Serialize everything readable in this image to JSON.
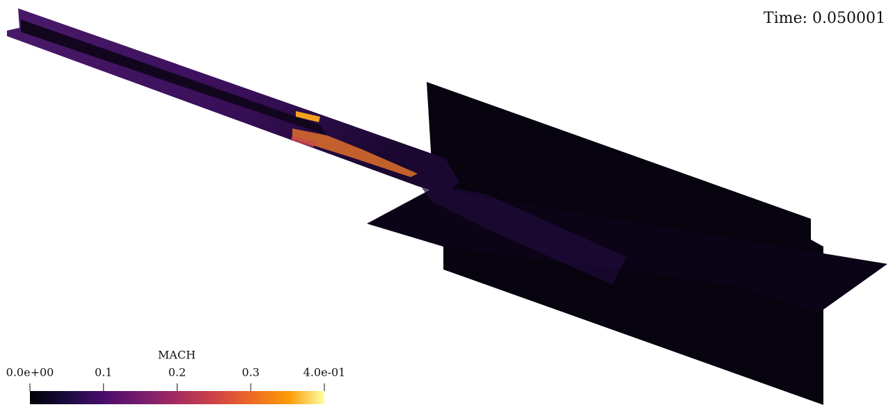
{
  "annotation": {
    "time": "Time: 0.050001"
  },
  "colorbar": {
    "title": "MACH",
    "range": [
      0,
      0.4
    ],
    "ticks": [
      {
        "value": 0,
        "label": "0.0e+00"
      },
      0.1,
      0.2,
      0.3,
      {
        "value": 0.4,
        "label": "4.0e-01"
      }
    ]
  }
}
